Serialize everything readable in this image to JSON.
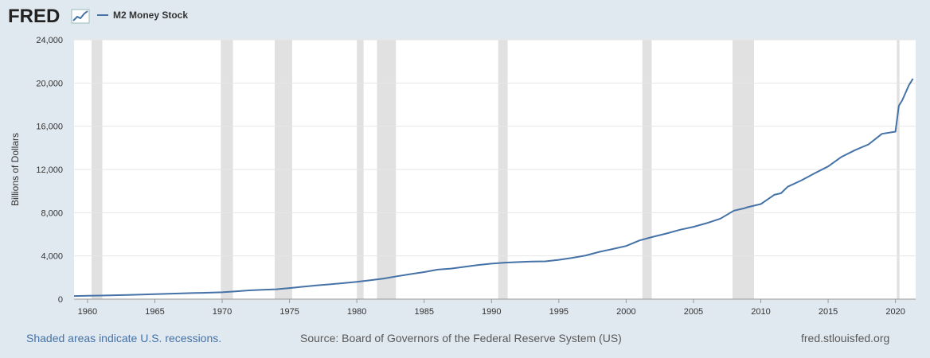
{
  "header": {
    "logo_text": "FRED",
    "legend_label": "M2 Money Stock"
  },
  "colors": {
    "series": "#4572a7",
    "recession": "#e1e1e1",
    "background": "#e1e9f0",
    "plot": "#ffffff"
  },
  "footer": {
    "recessions_note": "Shaded areas indicate U.S. recessions.",
    "source": "Source: Board of Governors of the Federal Reserve System (US)",
    "site": "fred.stlouisfed.org"
  },
  "chart_data": {
    "type": "line",
    "ylabel": "Billions of Dollars",
    "xlim": [
      1959,
      2021.5
    ],
    "ylim": [
      0,
      24000
    ],
    "y_ticks": [
      0,
      4000,
      8000,
      12000,
      16000,
      20000,
      24000
    ],
    "y_tick_labels": [
      "0",
      "4,000",
      "8,000",
      "12,000",
      "16,000",
      "20,000",
      "24,000"
    ],
    "x_ticks": [
      1960,
      1965,
      1970,
      1975,
      1980,
      1985,
      1990,
      1995,
      2000,
      2005,
      2010,
      2015,
      2020
    ],
    "x_tick_labels": [
      "1960",
      "1965",
      "1970",
      "1975",
      "1980",
      "1985",
      "1990",
      "1995",
      "2000",
      "2005",
      "2010",
      "2015",
      "2020"
    ],
    "grid": true,
    "recessions": [
      [
        1960.3,
        1961.1
      ],
      [
        1969.9,
        1970.8
      ],
      [
        1973.9,
        1975.2
      ],
      [
        1980.0,
        1980.5
      ],
      [
        1981.5,
        1982.9
      ],
      [
        1990.5,
        1991.2
      ],
      [
        2001.2,
        2001.9
      ],
      [
        2007.9,
        2009.5
      ],
      [
        2020.1,
        2020.3
      ]
    ],
    "series": [
      {
        "name": "M2 Money Stock",
        "x": [
          1959,
          1960,
          1961,
          1962,
          1963,
          1964,
          1965,
          1966,
          1967,
          1968,
          1969,
          1970,
          1971,
          1972,
          1973,
          1974,
          1975,
          1976,
          1977,
          1978,
          1979,
          1980,
          1981,
          1982,
          1983,
          1984,
          1985,
          1986,
          1987,
          1988,
          1989,
          1990,
          1991,
          1992,
          1993,
          1994,
          1995,
          1996,
          1997,
          1998,
          1999,
          2000,
          2001,
          2002,
          2003,
          2004,
          2005,
          2006,
          2007,
          2008,
          2008.75,
          2009,
          2010,
          2011,
          2011.5,
          2012,
          2013,
          2014,
          2015,
          2016,
          2017,
          2018,
          2019,
          2020,
          2020.25,
          2020.5,
          2021,
          2021.3
        ],
        "y": [
          290,
          310,
          330,
          360,
          390,
          420,
          460,
          490,
          530,
          570,
          600,
          630,
          720,
          810,
          860,
          910,
          1020,
          1150,
          1270,
          1370,
          1480,
          1600,
          1750,
          1910,
          2120,
          2320,
          2500,
          2730,
          2830,
          2990,
          3160,
          3280,
          3380,
          3430,
          3480,
          3500,
          3640,
          3820,
          4040,
          4370,
          4640,
          4920,
          5430,
          5770,
          6070,
          6420,
          6690,
          7040,
          7450,
          8190,
          8400,
          8500,
          8800,
          9650,
          9800,
          10400,
          10980,
          11650,
          12280,
          13170,
          13790,
          14320,
          15300,
          15500,
          17900,
          18400,
          19800,
          20400
        ]
      }
    ]
  }
}
